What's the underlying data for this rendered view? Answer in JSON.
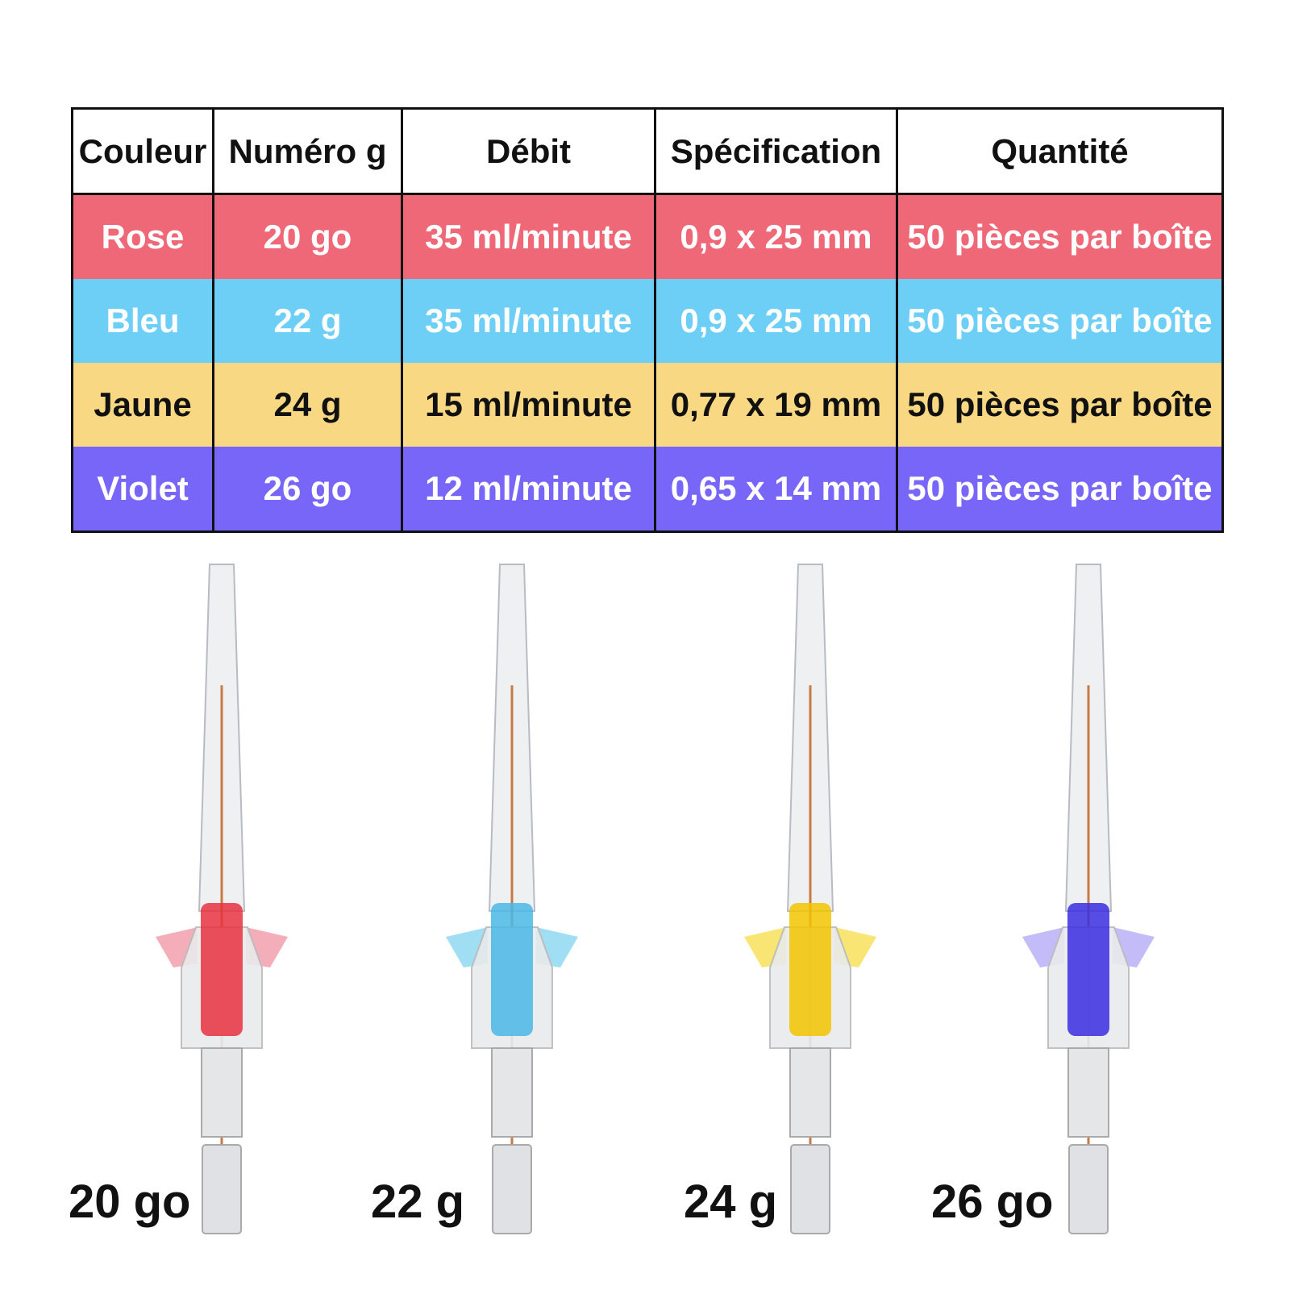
{
  "table": {
    "header": [
      "Couleur",
      "Numéro g",
      "Débit",
      "Spécification",
      "Quantité"
    ],
    "rows": [
      [
        "Rose",
        "20 go",
        "35 ml/minute",
        "0,9 x 25 mm",
        "50 pièces par boîte"
      ],
      [
        "Bleu",
        "22 g",
        "35 ml/minute",
        "0,9 x 25 mm",
        "50 pièces par boîte"
      ],
      [
        "Jaune",
        "24 g",
        "15 ml/minute",
        "0,77 x 19 mm",
        "50 pièces par boîte"
      ],
      [
        "Violet",
        "26 go",
        "12 ml/minute",
        "0,65 x 14 mm",
        "50 pièces par boîte"
      ]
    ]
  },
  "products": [
    "20 go",
    "22 g",
    "24 g",
    "26 go"
  ]
}
